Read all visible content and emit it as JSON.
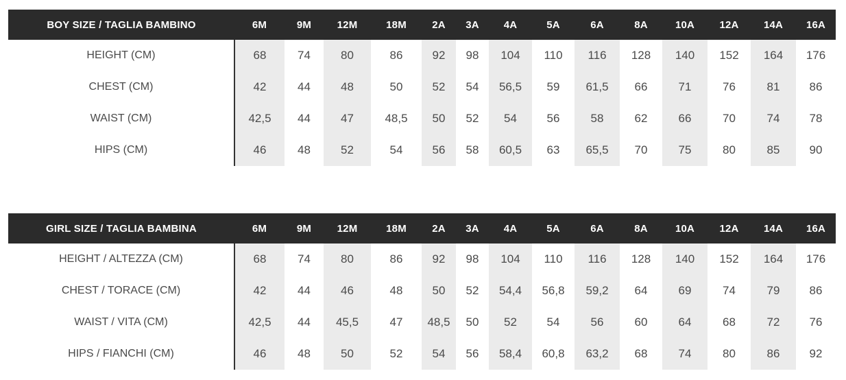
{
  "colors": {
    "header_bg": "#2b2b2b",
    "header_text": "#ffffff",
    "column_stripe": "#ebebeb",
    "cell_text": "#4a4a4a",
    "divider": "#333333",
    "background": "#ffffff"
  },
  "chart_data": [
    {
      "type": "table",
      "title": "BOY SIZE / TAGLIA BAMBINO",
      "columns": [
        "6M",
        "9M",
        "12M",
        "18M",
        "2A",
        "3A",
        "4A",
        "5A",
        "6A",
        "8A",
        "10A",
        "12A",
        "14A",
        "16A"
      ],
      "striped_columns": [
        "6M",
        "12M",
        "2A",
        "4A",
        "6A",
        "10A",
        "14A"
      ],
      "rows": [
        {
          "label": "HEIGHT (CM)",
          "values": [
            "68",
            "74",
            "80",
            "86",
            "92",
            "98",
            "104",
            "110",
            "116",
            "128",
            "140",
            "152",
            "164",
            "176"
          ]
        },
        {
          "label": "CHEST (CM)",
          "values": [
            "42",
            "44",
            "48",
            "50",
            "52",
            "54",
            "56,5",
            "59",
            "61,5",
            "66",
            "71",
            "76",
            "81",
            "86"
          ]
        },
        {
          "label": "WAIST (CM)",
          "values": [
            "42,5",
            "44",
            "47",
            "48,5",
            "50",
            "52",
            "54",
            "56",
            "58",
            "62",
            "66",
            "70",
            "74",
            "78"
          ]
        },
        {
          "label": "HIPS (CM)",
          "values": [
            "46",
            "48",
            "52",
            "54",
            "56",
            "58",
            "60,5",
            "63",
            "65,5",
            "70",
            "75",
            "80",
            "85",
            "90"
          ]
        }
      ]
    },
    {
      "type": "table",
      "title": "GIRL SIZE / TAGLIA BAMBINA",
      "columns": [
        "6M",
        "9M",
        "12M",
        "18M",
        "2A",
        "3A",
        "4A",
        "5A",
        "6A",
        "8A",
        "10A",
        "12A",
        "14A",
        "16A"
      ],
      "striped_columns": [
        "6M",
        "12M",
        "2A",
        "4A",
        "6A",
        "10A",
        "14A"
      ],
      "rows": [
        {
          "label": "HEIGHT / ALTEZZA (CM)",
          "values": [
            "68",
            "74",
            "80",
            "86",
            "92",
            "98",
            "104",
            "110",
            "116",
            "128",
            "140",
            "152",
            "164",
            "176"
          ]
        },
        {
          "label": "CHEST / TORACE (CM)",
          "values": [
            "42",
            "44",
            "46",
            "48",
            "50",
            "52",
            "54,4",
            "56,8",
            "59,2",
            "64",
            "69",
            "74",
            "79",
            "86"
          ]
        },
        {
          "label": "WAIST / VITA (CM)",
          "values": [
            "42,5",
            "44",
            "45,5",
            "47",
            "48,5",
            "50",
            "52",
            "54",
            "56",
            "60",
            "64",
            "68",
            "72",
            "76"
          ]
        },
        {
          "label": "HIPS / FIANCHI (CM)",
          "values": [
            "46",
            "48",
            "50",
            "52",
            "54",
            "56",
            "58,4",
            "60,8",
            "63,2",
            "68",
            "74",
            "80",
            "86",
            "92"
          ]
        }
      ]
    }
  ]
}
